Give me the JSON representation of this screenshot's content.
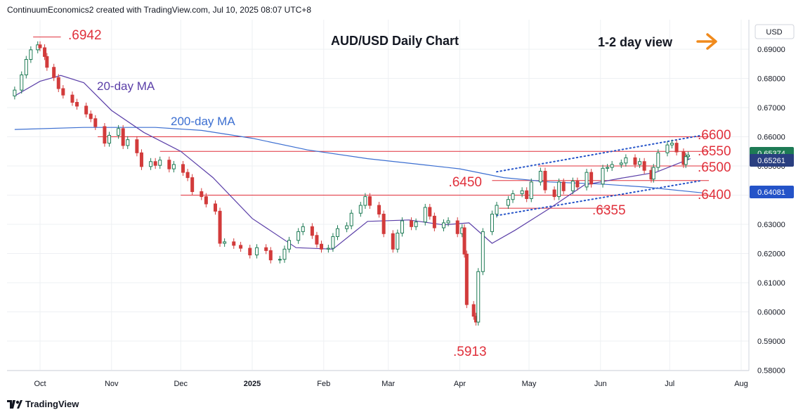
{
  "header": {
    "attribution": "ContinuumEconomics2 created with TradingView.com, Jul 10, 2025 08:07 UTC+8"
  },
  "footer": {
    "brand": "TradingView"
  },
  "chart_data": {
    "type": "candlestick",
    "title": "AUD/USD Daily Chart",
    "view_label": "1-2 day view",
    "currency": "USD",
    "ylim": [
      0.58,
      0.695
    ],
    "y_ticks": [
      "0.69000",
      "0.68000",
      "0.67000",
      "0.66000",
      "0.65000",
      "0.64000",
      "0.63000",
      "0.62000",
      "0.61000",
      "0.60000",
      "0.59000",
      "0.58000"
    ],
    "x_ticks": [
      "Oct",
      "Nov",
      "Dec",
      "2025",
      "Feb",
      "Mar",
      "Apr",
      "May",
      "Jun",
      "Jul",
      "Aug"
    ],
    "price_badges": [
      "0.65374",
      "0.65261",
      "0.64081"
    ],
    "series_labels": {
      "ma20": "20-day MA",
      "ma200": "200-day MA"
    },
    "levels": [
      {
        "label": ".6942",
        "value": 0.6942
      },
      {
        "label": ".6600",
        "value": 0.66
      },
      {
        "label": ".6550",
        "value": 0.655
      },
      {
        "label": ".6500",
        "value": 0.65
      },
      {
        "label": ".6450",
        "value": 0.645
      },
      {
        "label": ".6400",
        "value": 0.64
      },
      {
        "label": ".6355",
        "value": 0.6355
      },
      {
        "label": ".5913",
        "value": 0.5913
      }
    ],
    "channel": {
      "upper": [
        [
          "2025-04-17",
          0.648
        ],
        [
          "2025-07-15",
          0.6605
        ]
      ],
      "lower": [
        [
          "2025-04-17",
          0.633
        ],
        [
          "2025-07-15",
          0.645
        ]
      ]
    },
    "ma200": [
      [
        "2024-09-20",
        0.6625
      ],
      [
        "2024-10-20",
        0.6632
      ],
      [
        "2024-11-20",
        0.6632
      ],
      [
        "2024-12-10",
        0.6622
      ],
      [
        "2025-01-01",
        0.6595
      ],
      [
        "2025-01-25",
        0.6555
      ],
      [
        "2025-02-20",
        0.6525
      ],
      [
        "2025-03-15",
        0.6505
      ],
      [
        "2025-04-01",
        0.649
      ],
      [
        "2025-04-20",
        0.646
      ],
      [
        "2025-05-10",
        0.6445
      ],
      [
        "2025-06-01",
        0.6438
      ],
      [
        "2025-06-20",
        0.6428
      ],
      [
        "2025-07-15",
        0.6408
      ]
    ],
    "ma20": [
      [
        "2024-09-20",
        0.674
      ],
      [
        "2024-10-01",
        0.679
      ],
      [
        "2024-10-10",
        0.681
      ],
      [
        "2024-10-20",
        0.6785
      ],
      [
        "2024-11-01",
        0.669
      ],
      [
        "2024-11-15",
        0.6615
      ],
      [
        "2024-12-01",
        0.655
      ],
      [
        "2024-12-15",
        0.646
      ],
      [
        "2025-01-01",
        0.632
      ],
      [
        "2025-01-20",
        0.622
      ],
      [
        "2025-02-05",
        0.6215
      ],
      [
        "2025-02-20",
        0.631
      ],
      [
        "2025-03-10",
        0.6315
      ],
      [
        "2025-03-25",
        0.6298
      ],
      [
        "2025-04-05",
        0.6305
      ],
      [
        "2025-04-15",
        0.6235
      ],
      [
        "2025-04-25",
        0.628
      ],
      [
        "2025-05-10",
        0.6355
      ],
      [
        "2025-05-25",
        0.6435
      ],
      [
        "2025-06-10",
        0.6458
      ],
      [
        "2025-06-25",
        0.6478
      ],
      [
        "2025-07-10",
        0.6525
      ]
    ],
    "candles": [
      [
        "2024-09-20",
        0.674,
        0.676
      ],
      [
        "2024-09-23",
        0.676,
        0.6812
      ],
      [
        "2024-09-25",
        0.6812,
        0.6865
      ],
      [
        "2024-09-27",
        0.6865,
        0.6898
      ],
      [
        "2024-09-30",
        0.6898,
        0.6915
      ],
      [
        "2024-10-01",
        0.6915,
        0.6905
      ],
      [
        "2024-10-03",
        0.6905,
        0.6875
      ],
      [
        "2024-10-04",
        0.6875,
        0.6838
      ],
      [
        "2024-10-07",
        0.6838,
        0.6803
      ],
      [
        "2024-10-09",
        0.6803,
        0.6765
      ],
      [
        "2024-10-11",
        0.6765,
        0.6743
      ],
      [
        "2024-10-15",
        0.6743,
        0.6718
      ],
      [
        "2024-10-17",
        0.6718,
        0.6705
      ],
      [
        "2024-10-21",
        0.6705,
        0.6678
      ],
      [
        "2024-10-23",
        0.6678,
        0.6662
      ],
      [
        "2024-10-25",
        0.6662,
        0.6635
      ],
      [
        "2024-10-29",
        0.6635,
        0.6578
      ],
      [
        "2024-10-31",
        0.6578,
        0.6605
      ],
      [
        "2024-11-04",
        0.6605,
        0.6628
      ],
      [
        "2024-11-06",
        0.6628,
        0.657
      ],
      [
        "2024-11-08",
        0.657,
        0.659
      ],
      [
        "2024-11-12",
        0.659,
        0.6545
      ],
      [
        "2024-11-14",
        0.6545,
        0.6498
      ],
      [
        "2024-11-18",
        0.6498,
        0.6515
      ],
      [
        "2024-11-20",
        0.6515,
        0.6502
      ],
      [
        "2024-11-22",
        0.6502,
        0.652
      ],
      [
        "2024-11-26",
        0.652,
        0.649
      ],
      [
        "2024-11-28",
        0.649,
        0.6505
      ],
      [
        "2024-12-02",
        0.6505,
        0.6478
      ],
      [
        "2024-12-04",
        0.6478,
        0.646
      ],
      [
        "2024-12-06",
        0.646,
        0.6412
      ],
      [
        "2024-12-10",
        0.6412,
        0.6395
      ],
      [
        "2024-12-12",
        0.6395,
        0.637
      ],
      [
        "2024-12-16",
        0.637,
        0.6345
      ],
      [
        "2024-12-18",
        0.6345,
        0.6235
      ],
      [
        "2024-12-20",
        0.6235,
        0.624
      ],
      [
        "2024-12-24",
        0.624,
        0.6228
      ],
      [
        "2024-12-27",
        0.6228,
        0.6218
      ],
      [
        "2024-12-31",
        0.6218,
        0.6195
      ],
      [
        "2025-01-03",
        0.6195,
        0.622
      ],
      [
        "2025-01-07",
        0.622,
        0.621
      ],
      [
        "2025-01-09",
        0.621,
        0.6178
      ],
      [
        "2025-01-13",
        0.6178,
        0.618
      ],
      [
        "2025-01-15",
        0.618,
        0.6215
      ],
      [
        "2025-01-17",
        0.6215,
        0.6245
      ],
      [
        "2025-01-21",
        0.6245,
        0.6275
      ],
      [
        "2025-01-23",
        0.6275,
        0.6292
      ],
      [
        "2025-01-27",
        0.6292,
        0.6262
      ],
      [
        "2025-01-29",
        0.6262,
        0.6232
      ],
      [
        "2025-01-31",
        0.6232,
        0.6215
      ],
      [
        "2025-02-03",
        0.6215,
        0.6218
      ],
      [
        "2025-02-05",
        0.6218,
        0.6258
      ],
      [
        "2025-02-07",
        0.6258,
        0.6285
      ],
      [
        "2025-02-11",
        0.6285,
        0.6295
      ],
      [
        "2025-02-13",
        0.6295,
        0.6338
      ],
      [
        "2025-02-17",
        0.6338,
        0.6365
      ],
      [
        "2025-02-19",
        0.6365,
        0.6395
      ],
      [
        "2025-02-21",
        0.6395,
        0.6365
      ],
      [
        "2025-02-25",
        0.6365,
        0.6335
      ],
      [
        "2025-02-27",
        0.6335,
        0.6268
      ],
      [
        "2025-03-03",
        0.6268,
        0.6215
      ],
      [
        "2025-03-05",
        0.6215,
        0.627
      ],
      [
        "2025-03-07",
        0.627,
        0.6312
      ],
      [
        "2025-03-11",
        0.6312,
        0.6292
      ],
      [
        "2025-03-13",
        0.6292,
        0.6308
      ],
      [
        "2025-03-17",
        0.6308,
        0.6358
      ],
      [
        "2025-03-19",
        0.6358,
        0.6328
      ],
      [
        "2025-03-21",
        0.6328,
        0.6288
      ],
      [
        "2025-03-25",
        0.6288,
        0.6305
      ],
      [
        "2025-03-27",
        0.6305,
        0.6312
      ],
      [
        "2025-03-31",
        0.6312,
        0.6268
      ],
      [
        "2025-04-02",
        0.6268,
        0.6288
      ],
      [
        "2025-04-03",
        0.6288,
        0.6198
      ],
      [
        "2025-04-04",
        0.6198,
        0.6025
      ],
      [
        "2025-04-07",
        0.6025,
        0.5985
      ],
      [
        "2025-04-08",
        0.5985,
        0.5965
      ],
      [
        "2025-04-09",
        0.5965,
        0.6138
      ],
      [
        "2025-04-11",
        0.6138,
        0.6275
      ],
      [
        "2025-04-15",
        0.6275,
        0.6335
      ],
      [
        "2025-04-17",
        0.6335,
        0.6365
      ],
      [
        "2025-04-22",
        0.6365,
        0.6385
      ],
      [
        "2025-04-24",
        0.6385,
        0.6405
      ],
      [
        "2025-04-28",
        0.6405,
        0.6415
      ],
      [
        "2025-04-30",
        0.6415,
        0.6388
      ],
      [
        "2025-05-02",
        0.6388,
        0.6445
      ],
      [
        "2025-05-06",
        0.6445,
        0.6482
      ],
      [
        "2025-05-08",
        0.6482,
        0.6418
      ],
      [
        "2025-05-12",
        0.6418,
        0.6395
      ],
      [
        "2025-05-14",
        0.6395,
        0.6445
      ],
      [
        "2025-05-16",
        0.6445,
        0.6415
      ],
      [
        "2025-05-20",
        0.6415,
        0.6448
      ],
      [
        "2025-05-22",
        0.6448,
        0.6428
      ],
      [
        "2025-05-26",
        0.6428,
        0.6478
      ],
      [
        "2025-05-28",
        0.6478,
        0.6438
      ],
      [
        "2025-06-02",
        0.6438,
        0.6492
      ],
      [
        "2025-06-04",
        0.6492,
        0.6495
      ],
      [
        "2025-06-06",
        0.6495,
        0.6505
      ],
      [
        "2025-06-10",
        0.6505,
        0.651
      ],
      [
        "2025-06-12",
        0.651,
        0.6528
      ],
      [
        "2025-06-16",
        0.6528,
        0.6505
      ],
      [
        "2025-06-18",
        0.6505,
        0.6515
      ],
      [
        "2025-06-20",
        0.6515,
        0.6485
      ],
      [
        "2025-06-23",
        0.6485,
        0.6455
      ],
      [
        "2025-06-24",
        0.6455,
        0.6495
      ],
      [
        "2025-06-26",
        0.6495,
        0.6545
      ],
      [
        "2025-06-30",
        0.6545,
        0.6572
      ],
      [
        "2025-07-02",
        0.6572,
        0.6578
      ],
      [
        "2025-07-04",
        0.6578,
        0.6548
      ],
      [
        "2025-07-07",
        0.6548,
        0.6505
      ],
      [
        "2025-07-08",
        0.6505,
        0.6532
      ],
      [
        "2025-07-09",
        0.6532,
        0.6537
      ]
    ]
  }
}
